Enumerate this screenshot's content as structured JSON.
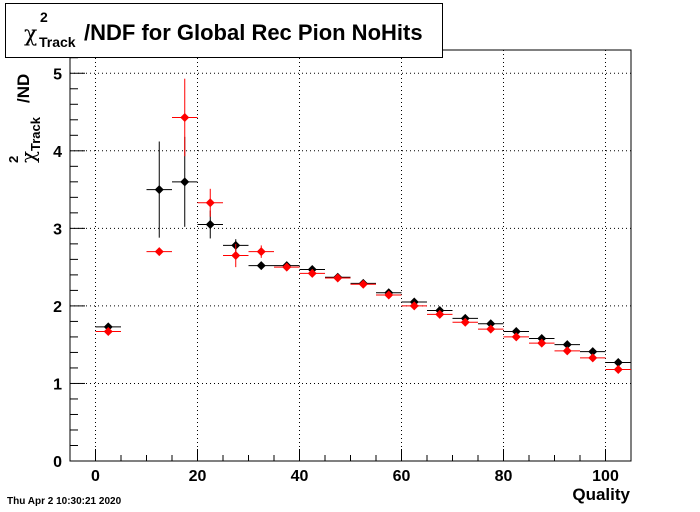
{
  "title": {
    "symbol": "χ",
    "superscript": "2",
    "subscript": "Track",
    "text": "/NDF for Global Rec Pion NoHits"
  },
  "footer": {
    "timestamp": "Thu Apr  2 10:30:21 2020"
  },
  "chart_data": {
    "type": "scatter",
    "title": "χ²_Track/NDF for Global Rec Pion NoHits",
    "xlabel": "Quality",
    "ylabel": {
      "symbol": "χ",
      "superscript": "2",
      "subscript": "Track",
      "text": "/ND"
    },
    "xlim": [
      -5,
      105
    ],
    "ylim": [
      0,
      5.3
    ],
    "xticks": [
      0,
      20,
      40,
      60,
      80,
      100
    ],
    "yticks": [
      0,
      1,
      2,
      3,
      4,
      5
    ],
    "grid": true,
    "bin_half_width": 2.5,
    "series": [
      {
        "color": "#000000",
        "points": [
          {
            "x": 2.5,
            "y": 1.73,
            "ey": 0.03
          },
          {
            "x": 12.5,
            "y": 3.5,
            "ey": 0.62
          },
          {
            "x": 17.5,
            "y": 3.6,
            "ey": 0.58
          },
          {
            "x": 22.5,
            "y": 3.05,
            "ey": 0.18
          },
          {
            "x": 27.5,
            "y": 2.78,
            "ey": 0.08
          },
          {
            "x": 32.5,
            "y": 2.52,
            "ey": 0.03
          },
          {
            "x": 37.5,
            "y": 2.52,
            "ey": 0.02
          },
          {
            "x": 42.5,
            "y": 2.47,
            "ey": 0.02
          },
          {
            "x": 47.5,
            "y": 2.37,
            "ey": 0.01
          },
          {
            "x": 52.5,
            "y": 2.29,
            "ey": 0.01
          },
          {
            "x": 57.5,
            "y": 2.17,
            "ey": 0.01
          },
          {
            "x": 62.5,
            "y": 2.05,
            "ey": 0.01
          },
          {
            "x": 67.5,
            "y": 1.94,
            "ey": 0.01
          },
          {
            "x": 72.5,
            "y": 1.84,
            "ey": 0.01
          },
          {
            "x": 77.5,
            "y": 1.77,
            "ey": 0.01
          },
          {
            "x": 82.5,
            "y": 1.67,
            "ey": 0.01
          },
          {
            "x": 87.5,
            "y": 1.58,
            "ey": 0.01
          },
          {
            "x": 92.5,
            "y": 1.5,
            "ey": 0.01
          },
          {
            "x": 97.5,
            "y": 1.41,
            "ey": 0.01
          },
          {
            "x": 102.5,
            "y": 1.27,
            "ey": 0.01
          }
        ]
      },
      {
        "color": "#ff0000",
        "points": [
          {
            "x": 2.5,
            "y": 1.67,
            "ey": 0.03
          },
          {
            "x": 12.5,
            "y": 2.7,
            "ey": 0.03
          },
          {
            "x": 17.5,
            "y": 4.43,
            "ey": 0.5
          },
          {
            "x": 22.5,
            "y": 3.33,
            "ey": 0.18
          },
          {
            "x": 27.5,
            "y": 2.65,
            "ey": 0.15
          },
          {
            "x": 32.5,
            "y": 2.7,
            "ey": 0.08
          },
          {
            "x": 37.5,
            "y": 2.5,
            "ey": 0.04
          },
          {
            "x": 42.5,
            "y": 2.42,
            "ey": 0.03
          },
          {
            "x": 47.5,
            "y": 2.36,
            "ey": 0.02
          },
          {
            "x": 52.5,
            "y": 2.28,
            "ey": 0.01
          },
          {
            "x": 57.5,
            "y": 2.14,
            "ey": 0.01
          },
          {
            "x": 62.5,
            "y": 2.0,
            "ey": 0.01
          },
          {
            "x": 67.5,
            "y": 1.89,
            "ey": 0.01
          },
          {
            "x": 72.5,
            "y": 1.79,
            "ey": 0.01
          },
          {
            "x": 77.5,
            "y": 1.7,
            "ey": 0.01
          },
          {
            "x": 82.5,
            "y": 1.6,
            "ey": 0.01
          },
          {
            "x": 87.5,
            "y": 1.52,
            "ey": 0.01
          },
          {
            "x": 92.5,
            "y": 1.42,
            "ey": 0.01
          },
          {
            "x": 97.5,
            "y": 1.33,
            "ey": 0.01
          },
          {
            "x": 102.5,
            "y": 1.18,
            "ey": 0.01
          }
        ]
      }
    ]
  }
}
